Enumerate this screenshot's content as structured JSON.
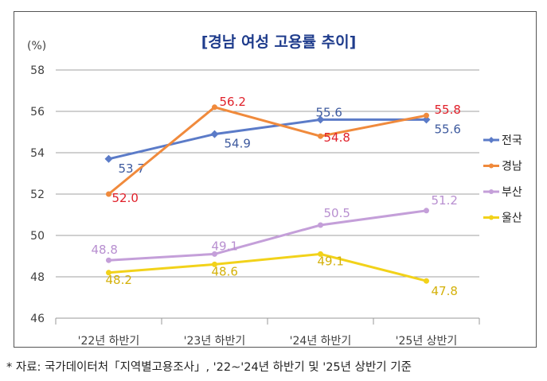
{
  "chart_data": {
    "type": "line",
    "title": "[경남 여성 고용률 추이]",
    "ylabel": "(%)",
    "xlabel": "",
    "categories": [
      "'22년 하반기",
      "'23년 하반기",
      "'24년 하반기",
      "'25년 상반기"
    ],
    "ylim": [
      46,
      58
    ],
    "yticks": [
      46,
      48,
      50,
      52,
      54,
      56,
      58
    ],
    "grid": true,
    "legend": "right",
    "series": [
      {
        "name": "전국",
        "values": [
          53.7,
          54.9,
          55.6,
          55.6
        ],
        "color": "#5b7bc8",
        "label_color": "#3e5a9e"
      },
      {
        "name": "경남",
        "values": [
          52.0,
          56.2,
          54.8,
          55.8
        ],
        "color": "#f08a3c",
        "label_color": "#e0202a"
      },
      {
        "name": "부산",
        "values": [
          48.8,
          49.1,
          50.5,
          51.2
        ],
        "color": "#c49fd9",
        "label_color": "#b88fd0"
      },
      {
        "name": "울산",
        "values": [
          48.2,
          48.6,
          49.1,
          47.8
        ],
        "color": "#f2d21a",
        "label_color": "#d4b10a"
      }
    ]
  },
  "footnote": "* 자료: 국가데이터처「지역별고용조사」, '22~'24년 하반기 및 '25년 상반기 기준"
}
